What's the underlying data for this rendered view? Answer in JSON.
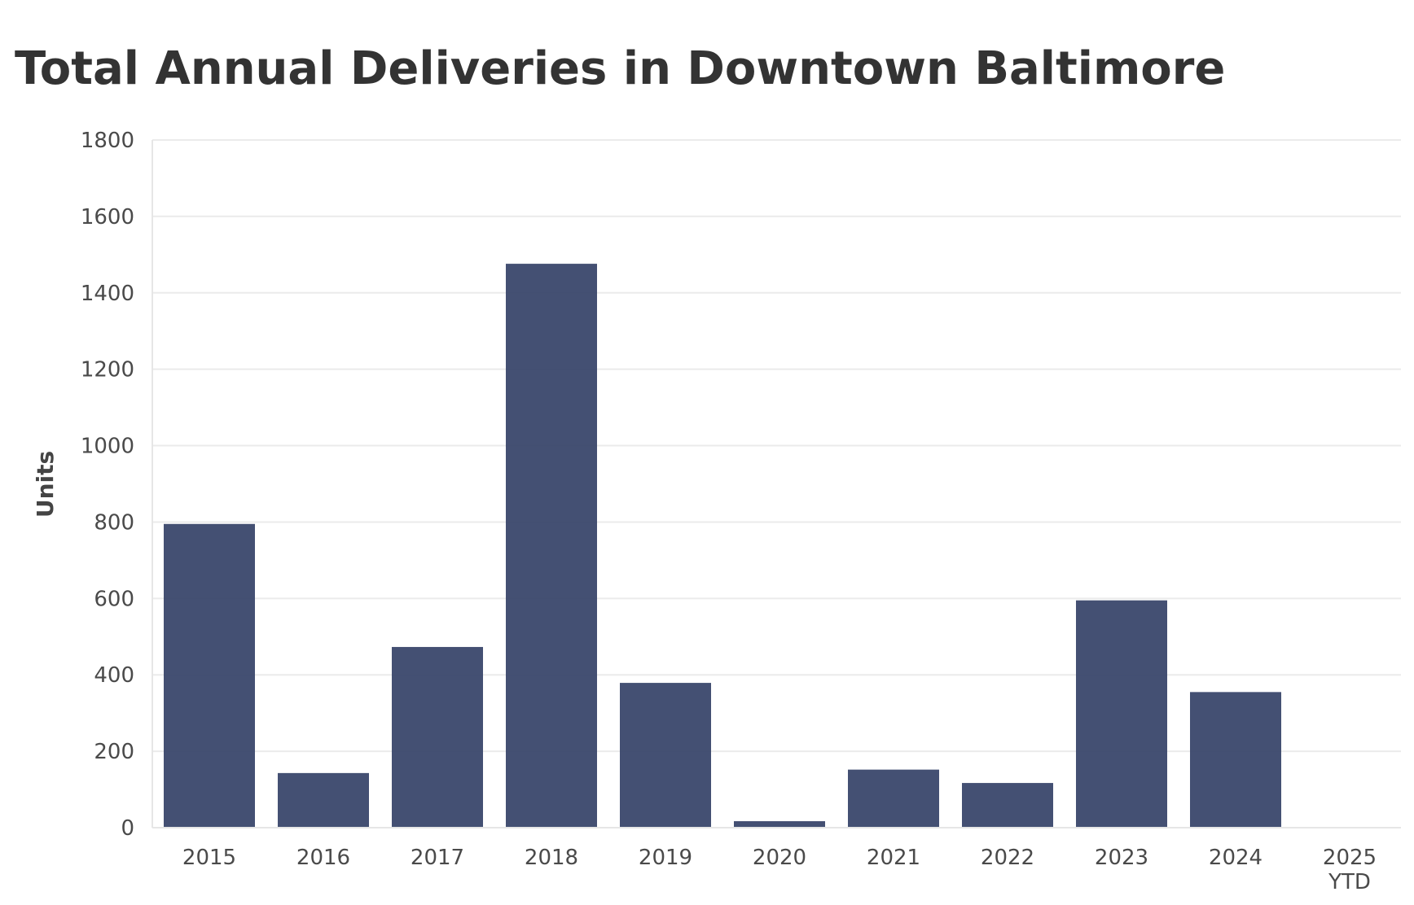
{
  "chart_data": {
    "type": "bar",
    "title": "Total Annual Deliveries in Downtown Baltimore",
    "xlabel": "",
    "ylabel": "Units",
    "categories": [
      [
        "2015"
      ],
      [
        "2016"
      ],
      [
        "2017"
      ],
      [
        "2018"
      ],
      [
        "2019"
      ],
      [
        "2020"
      ],
      [
        "2021"
      ],
      [
        "2022"
      ],
      [
        "2023"
      ],
      [
        "2024"
      ],
      [
        "2025",
        "YTD"
      ]
    ],
    "values": [
      795,
      143,
      473,
      1476,
      379,
      17,
      152,
      117,
      595,
      355,
      0
    ],
    "ylim": [
      0,
      1800
    ],
    "yticks": [
      0,
      200,
      400,
      600,
      800,
      1000,
      1200,
      1400,
      1600,
      1800
    ],
    "grid": true,
    "legend": "none",
    "bar_color": "#3a476b"
  }
}
